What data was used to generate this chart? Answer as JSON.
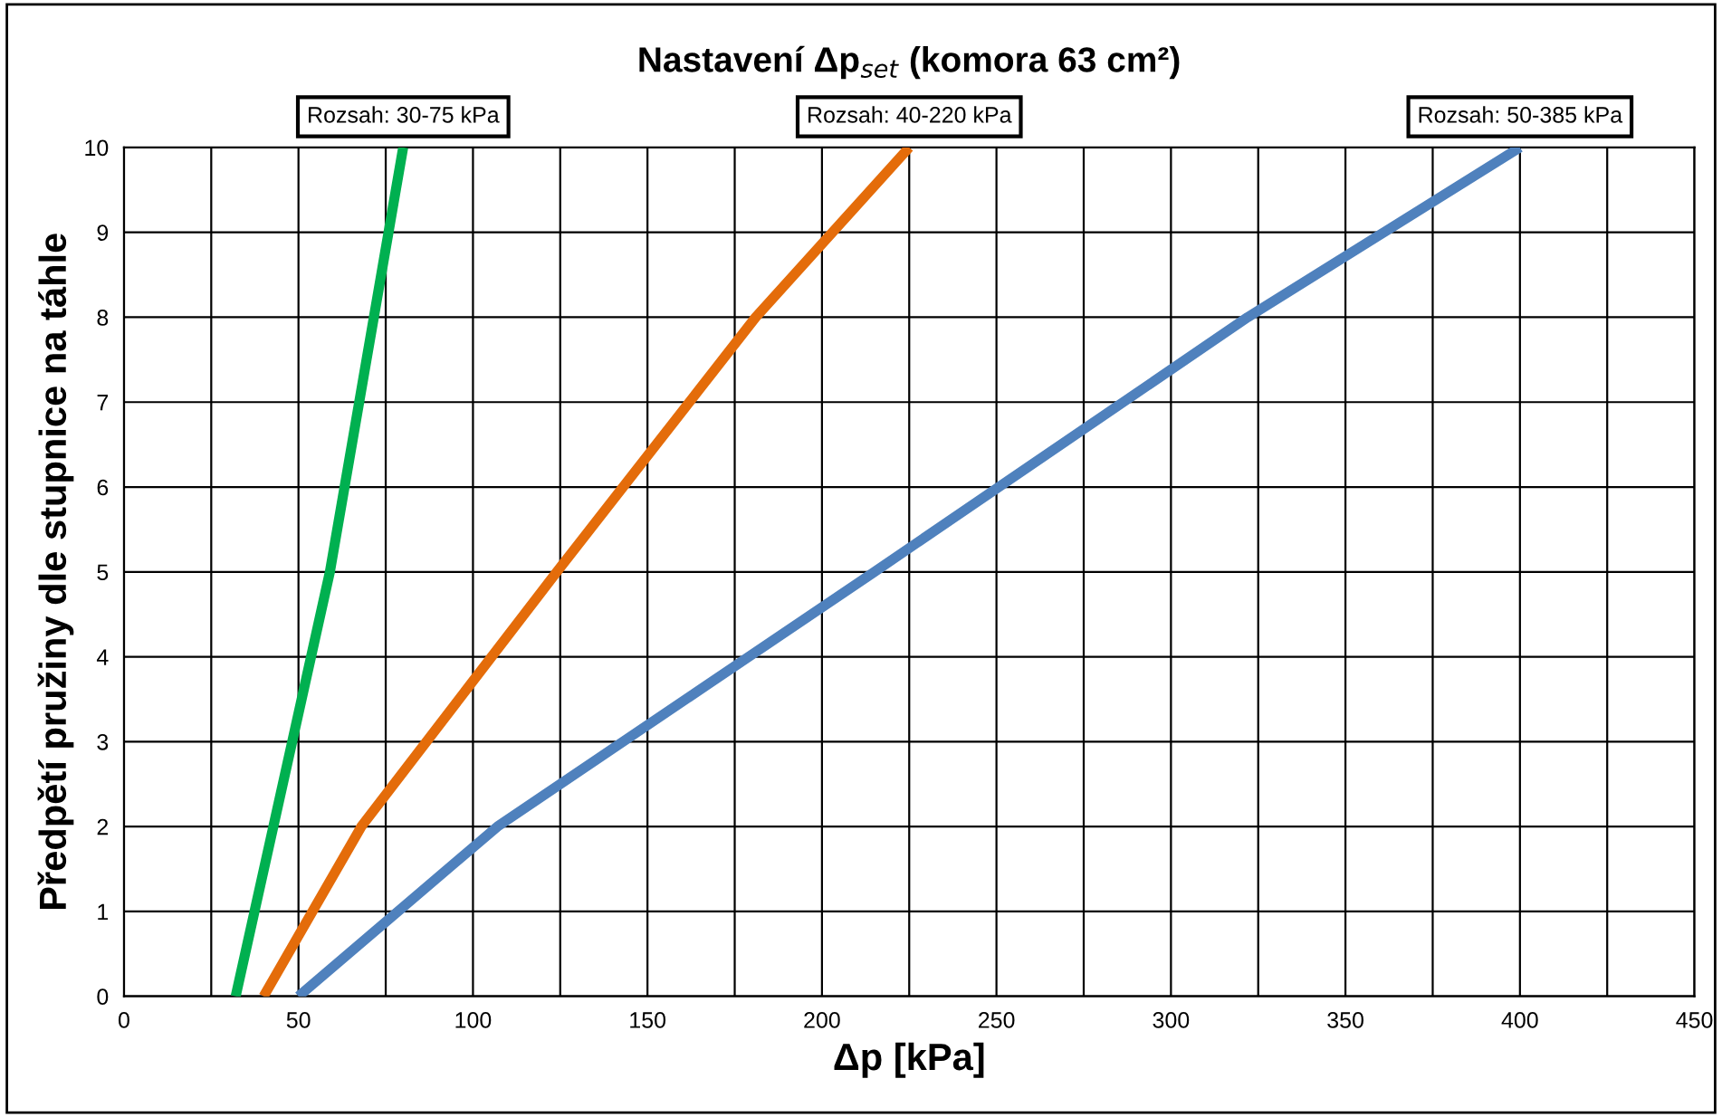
{
  "chart_data": {
    "type": "line",
    "title": "Nastavení Δp$_{set}$ (komora 63 cm²)",
    "xlabel": "Δp [kPa]",
    "ylabel": "Předpětí pružiny dle stupnice na táhle",
    "series": [
      {
        "color": "#00b050",
        "x": [
          32,
          59,
          80
        ],
        "values": [
          0,
          5,
          10
        ]
      },
      {
        "color": "#e46c0a",
        "x": [
          40,
          68,
          124,
          181,
          225
        ],
        "values": [
          0,
          2,
          5,
          8,
          10
        ]
      },
      {
        "color": "#4f81bd",
        "x": [
          50,
          107,
          215,
          322,
          400
        ],
        "values": [
          0,
          2,
          5,
          8,
          10
        ]
      }
    ],
    "annotations": [
      {
        "text": "Rozsah: 30-75 kPa",
        "x": 80,
        "y": 10
      },
      {
        "text": "Rozsah: 40-220 kPa",
        "x": 225,
        "y": 10
      },
      {
        "text": "Rozsah: 50-385 kPa",
        "x": 400,
        "y": 10
      }
    ],
    "xlim": [
      0,
      450
    ],
    "ylim": [
      0,
      10
    ],
    "xticks": [
      0,
      {
        "value": 25,
        "label": null
      },
      50,
      {
        "value": 75,
        "label": null
      },
      100,
      {
        "value": 125,
        "label": null
      },
      150,
      {
        "value": 175,
        "label": null
      },
      200,
      {
        "value": 225,
        "label": null
      },
      250,
      {
        "value": 275,
        "label": null
      },
      300,
      {
        "value": 325,
        "label": null
      },
      350,
      {
        "value": 375,
        "label": null
      },
      400,
      {
        "value": 425,
        "label": null
      },
      450
    ],
    "yticks": [
      0,
      1,
      2,
      3,
      4,
      5,
      6,
      7,
      8,
      9,
      10
    ],
    "grid": true,
    "line_style": "solid",
    "marker": "none"
  }
}
